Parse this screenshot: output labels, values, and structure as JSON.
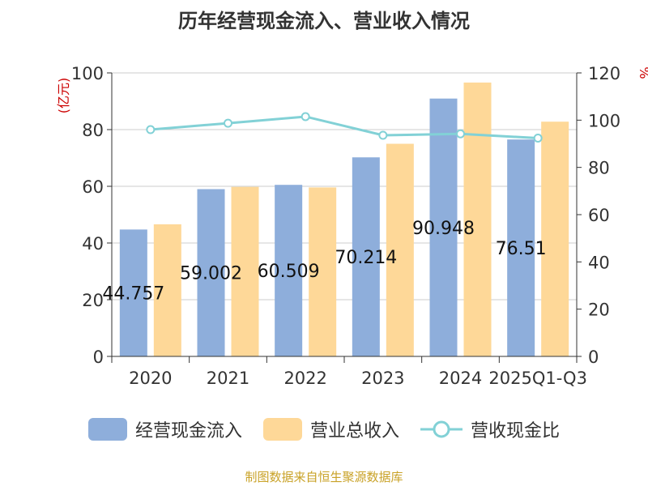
{
  "title": "历年经营现金流入、营业收入情况",
  "footer": "制图数据来自恒生聚源数据库",
  "colors": {
    "cash_inflow": "#8eaedb",
    "revenue": "#fed898",
    "ratio": "#82d1d6"
  },
  "chart_data": {
    "type": "bar",
    "categories": [
      "2020",
      "2021",
      "2022",
      "2023",
      "2024",
      "2025Q1-Q3"
    ],
    "series": [
      {
        "name": "经营现金流入",
        "axis": "left",
        "values": [
          44.757,
          59.002,
          60.509,
          70.214,
          90.948,
          76.51
        ],
        "labels": [
          "44.757",
          "59.002",
          "60.509",
          "70.214",
          "90.948",
          "76.51"
        ]
      },
      {
        "name": "营业总收入",
        "axis": "left",
        "values": [
          46.6,
          59.8,
          59.6,
          75.0,
          96.6,
          82.8
        ]
      },
      {
        "name": "营收现金比",
        "type": "line",
        "axis": "right",
        "values": [
          96.0,
          98.7,
          101.5,
          93.6,
          94.2,
          92.4
        ]
      }
    ],
    "yleft": {
      "label": "(亿元)",
      "min": 0,
      "max": 100,
      "ticks": [
        0,
        20,
        40,
        60,
        80,
        100
      ]
    },
    "yright": {
      "label": "%",
      "min": 0,
      "max": 120,
      "ticks": [
        0,
        20,
        40,
        60,
        80,
        100,
        120
      ]
    },
    "grid": true,
    "legend": "bottom"
  }
}
